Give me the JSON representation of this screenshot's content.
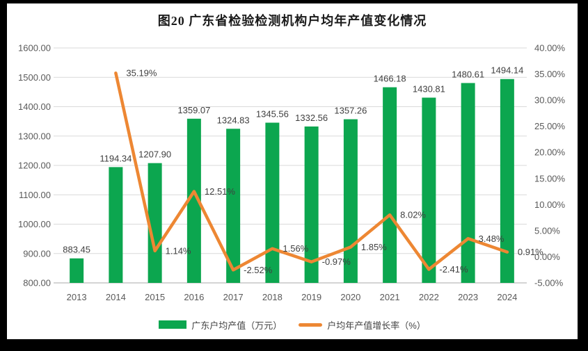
{
  "title": "图20 广东省检验检测机构户均年产值变化情况",
  "colors": {
    "background": "#000000",
    "chart_bg": "#FFFFFF",
    "gridline": "#D9D9D9",
    "axis_line": "#C6C6C6",
    "axis_text": "#595959",
    "label_text": "#3F3F3F",
    "bar": "#0CA64F",
    "line": "#ED8733"
  },
  "chart_data": {
    "type": "combo bar+line",
    "title": "图20 广东省检验检测机构户均年产值变化情况",
    "categories": [
      "2013",
      "2014",
      "2015",
      "2016",
      "2017",
      "2018",
      "2019",
      "2020",
      "2021",
      "2022",
      "2023",
      "2024"
    ],
    "series": [
      {
        "name": "广东户均产值（万元）",
        "chart_type": "bar",
        "axis": "left",
        "color": "#0CA64F",
        "values": [
          883.45,
          1194.34,
          1207.9,
          1359.07,
          1324.83,
          1345.56,
          1332.56,
          1357.26,
          1466.18,
          1430.81,
          1480.61,
          1494.14
        ],
        "data_labels": [
          "883.45",
          "1194.34",
          "1207.90",
          "1359.07",
          "1324.83",
          "1345.56",
          "1332.56",
          "1357.26",
          "1466.18",
          "1430.81",
          "1480.61",
          "1494.14"
        ]
      },
      {
        "name": "户均年产值增长率（%）",
        "chart_type": "line",
        "axis": "right",
        "color": "#ED8733",
        "values": [
          null,
          35.19,
          1.14,
          12.51,
          -2.52,
          1.56,
          -0.97,
          1.85,
          8.02,
          -2.41,
          3.48,
          0.91
        ],
        "data_labels": [
          null,
          "35.19%",
          "1.14%",
          "12.51%",
          "-2.52%",
          "1.56%",
          "-0.97%",
          "1.85%",
          "8.02%",
          "-2.41%",
          "3.48%",
          "0.91%"
        ]
      }
    ],
    "left_axis": {
      "min": 800,
      "max": 1600,
      "step": 100,
      "tick_labels": [
        "800.00",
        "900.00",
        "1000.00",
        "1100.00",
        "1200.00",
        "1300.00",
        "1400.00",
        "1500.00",
        "1600.00"
      ]
    },
    "right_axis": {
      "min": -5,
      "max": 40,
      "step": 5,
      "tick_labels": [
        "-5.00%",
        "0.00%",
        "5.00%",
        "10.00%",
        "15.00%",
        "20.00%",
        "25.00%",
        "30.00%",
        "35.00%",
        "40.00%"
      ]
    },
    "grid": true,
    "legend_position": "bottom"
  }
}
